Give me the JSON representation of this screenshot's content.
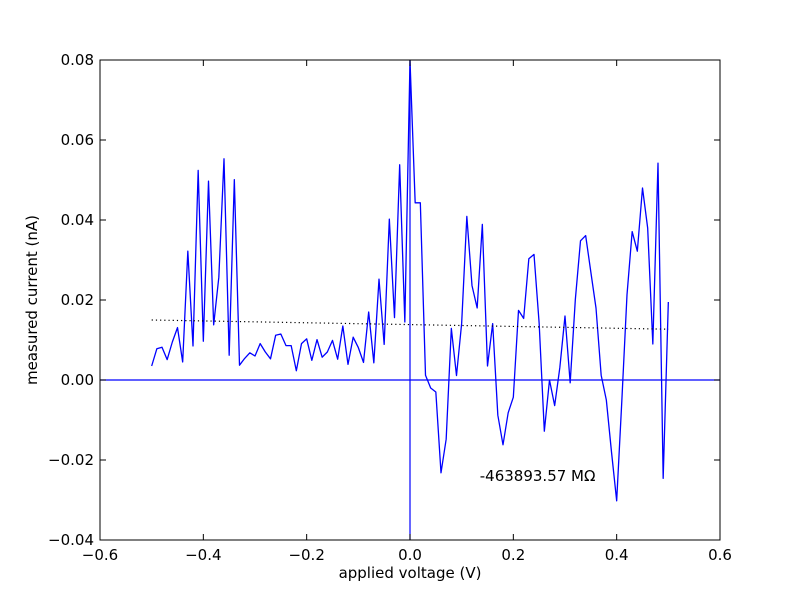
{
  "chart_data": {
    "type": "line",
    "xlabel": "applied voltage (V)",
    "ylabel": "measured current (nA)",
    "xlim": [
      -0.6,
      0.6
    ],
    "ylim": [
      -0.04,
      0.08
    ],
    "xticks": [
      -0.6,
      -0.4,
      -0.2,
      0.0,
      0.2,
      0.4,
      0.6
    ],
    "xtick_labels": [
      "−0.6",
      "−0.4",
      "−0.2",
      "0.0",
      "0.2",
      "0.4",
      "0.6"
    ],
    "yticks": [
      -0.04,
      -0.02,
      0.0,
      0.02,
      0.04,
      0.06,
      0.08
    ],
    "ytick_labels": [
      "−0.04",
      "−0.02",
      "0.00",
      "0.02",
      "0.04",
      "0.06",
      "0.08"
    ],
    "grid": false,
    "annotation": {
      "text": "-463893.57 MΩ",
      "x": 0.135,
      "y": -0.024
    },
    "series": [
      {
        "style": "solid",
        "color": "#0000ff",
        "x": [
          -0.5,
          -0.49,
          -0.48,
          -0.47,
          -0.46,
          -0.45,
          -0.44,
          -0.43,
          -0.42,
          -0.41,
          -0.4,
          -0.39,
          -0.38,
          -0.37,
          -0.36,
          -0.35,
          -0.34,
          -0.33,
          -0.32,
          -0.31,
          -0.3,
          -0.29,
          -0.28,
          -0.27,
          -0.26,
          -0.25,
          -0.24,
          -0.23,
          -0.22,
          -0.21,
          -0.2,
          -0.19,
          -0.18,
          -0.17,
          -0.16,
          -0.15,
          -0.14,
          -0.13,
          -0.12,
          -0.11,
          -0.1,
          -0.09,
          -0.08,
          -0.07,
          -0.06,
          -0.05,
          -0.04,
          -0.03,
          -0.02,
          -0.01,
          0.0,
          0.01,
          0.02,
          0.03,
          0.04,
          0.05,
          0.06,
          0.07,
          0.08,
          0.09,
          0.1,
          0.11,
          0.12,
          0.13,
          0.14,
          0.15,
          0.16,
          0.17,
          0.18,
          0.19,
          0.2,
          0.21,
          0.22,
          0.23,
          0.24,
          0.25,
          0.26,
          0.27,
          0.28,
          0.29,
          0.3,
          0.31,
          0.32,
          0.33,
          0.34,
          0.35,
          0.36,
          0.37,
          0.38,
          0.39,
          0.4,
          0.41,
          0.42,
          0.43,
          0.44,
          0.45,
          0.46,
          0.47,
          0.48,
          0.49,
          0.5
        ],
        "y": [
          0.0035,
          0.0078,
          0.0082,
          0.0051,
          0.0095,
          0.0131,
          0.0045,
          0.0322,
          0.0085,
          0.0524,
          0.0097,
          0.0497,
          0.0138,
          0.0257,
          0.0553,
          0.0062,
          0.0501,
          0.0037,
          0.0054,
          0.0068,
          0.006,
          0.0091,
          0.007,
          0.0053,
          0.0112,
          0.0115,
          0.0086,
          0.0086,
          0.0023,
          0.0091,
          0.0103,
          0.0049,
          0.0101,
          0.0057,
          0.007,
          0.0099,
          0.0052,
          0.0135,
          0.0039,
          0.0107,
          0.0081,
          0.0044,
          0.017,
          0.0043,
          0.0252,
          0.0089,
          0.0402,
          0.0156,
          0.0538,
          0.0145,
          0.0799,
          0.0443,
          0.0443,
          0.0012,
          -0.002,
          -0.003,
          -0.0232,
          -0.0148,
          0.0129,
          0.0011,
          0.0142,
          0.0409,
          0.0236,
          0.018,
          0.0389,
          0.0035,
          0.0141,
          -0.0088,
          -0.0162,
          -0.0082,
          -0.0043,
          0.0174,
          0.0154,
          0.0303,
          0.0314,
          0.0141,
          -0.0128,
          0.0,
          -0.0064,
          0.0031,
          0.016,
          -0.0007,
          0.0201,
          0.0348,
          0.0361,
          0.027,
          0.018,
          0.0012,
          -0.005,
          -0.018,
          -0.0302,
          -0.0052,
          0.0213,
          0.0371,
          0.0322,
          0.048,
          0.038,
          0.009,
          0.0542,
          -0.0246,
          0.0195
        ]
      },
      {
        "style": "dotted",
        "color": "#000000",
        "x": [
          -0.5,
          0.5
        ],
        "y": [
          0.015,
          0.0127
        ]
      }
    ],
    "reference_lines": [
      {
        "orientation": "horizontal",
        "value": 0.0,
        "color": "#0000ff"
      },
      {
        "orientation": "vertical",
        "value": 0.0,
        "color": "#0000ff"
      }
    ]
  }
}
